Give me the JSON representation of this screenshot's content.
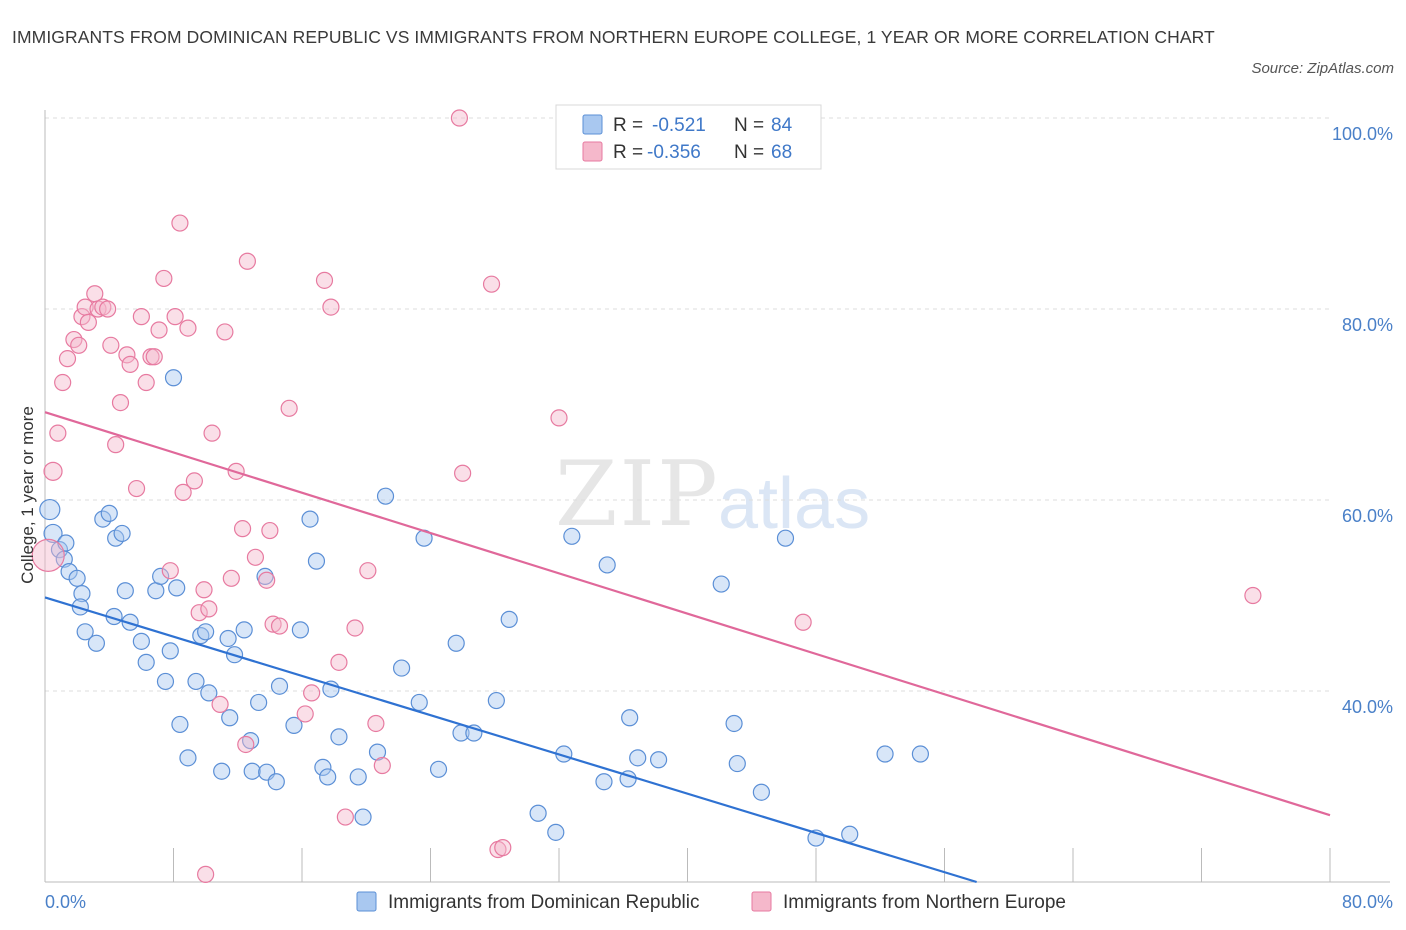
{
  "title": "IMMIGRANTS FROM DOMINICAN REPUBLIC VS IMMIGRANTS FROM NORTHERN EUROPE COLLEGE, 1 YEAR OR MORE CORRELATION CHART",
  "source": "Source: ZipAtlas.com",
  "watermark": {
    "zip": "ZIP",
    "atlas": "atlas"
  },
  "colors": {
    "blue_fill": "#a9c8f0",
    "blue_stroke": "#5b8fd6",
    "blue_line": "#2f72d2",
    "pink_fill": "#f5b8cb",
    "pink_stroke": "#e77aa0",
    "pink_line": "#e0689a",
    "tick": "#4a80c8",
    "grid": "#dddddd"
  },
  "legend": {
    "rows": [
      {
        "r_label": "R =",
        "r_value": "-0.521",
        "n_label": "N =",
        "n_value": "84"
      },
      {
        "r_label": "R =",
        "r_value": "-0.356",
        "n_label": "N =",
        "n_value": "68"
      }
    ]
  },
  "chart_data": {
    "type": "scatter",
    "title": "IMMIGRANTS FROM DOMINICAN REPUBLIC VS IMMIGRANTS FROM NORTHERN EUROPE COLLEGE, 1 YEAR OR MORE CORRELATION CHART",
    "xlabel": "",
    "ylabel": "College, 1 year or more",
    "xlim": [
      0,
      80
    ],
    "ylim": [
      20,
      100
    ],
    "x_tick_labels": [
      "0.0%",
      "80.0%"
    ],
    "y_ticks": [
      40,
      60,
      80,
      100
    ],
    "y_tick_labels": [
      "40.0%",
      "60.0%",
      "80.0%",
      "100.0%"
    ],
    "grid": true,
    "legend_position": "top-center",
    "series": [
      {
        "name": "Immigrants from Dominican Republic",
        "color": "#5b8fd6",
        "trend": {
          "x": [
            0,
            58
          ],
          "y": [
            49.8,
            20.0
          ]
        },
        "points": [
          [
            0.3,
            59.0
          ],
          [
            0.5,
            56.5
          ],
          [
            0.9,
            54.8
          ],
          [
            1.2,
            53.8
          ],
          [
            1.5,
            52.5
          ],
          [
            1.3,
            55.5
          ],
          [
            2.0,
            51.8
          ],
          [
            2.3,
            50.2
          ],
          [
            2.2,
            48.8
          ],
          [
            2.5,
            46.2
          ],
          [
            3.2,
            45.0
          ],
          [
            3.6,
            58.0
          ],
          [
            4.0,
            58.6
          ],
          [
            4.3,
            47.8
          ],
          [
            4.4,
            56.0
          ],
          [
            4.8,
            56.5
          ],
          [
            5.0,
            50.5
          ],
          [
            5.3,
            47.2
          ],
          [
            6.0,
            45.2
          ],
          [
            6.3,
            43.0
          ],
          [
            6.9,
            50.5
          ],
          [
            7.2,
            52.0
          ],
          [
            7.5,
            41.0
          ],
          [
            7.8,
            44.2
          ],
          [
            8.2,
            50.8
          ],
          [
            8.4,
            36.5
          ],
          [
            8.9,
            33.0
          ],
          [
            8.0,
            72.8
          ],
          [
            9.4,
            41.0
          ],
          [
            9.7,
            45.8
          ],
          [
            10.2,
            39.8
          ],
          [
            10.0,
            46.2
          ],
          [
            11.0,
            31.6
          ],
          [
            11.4,
            45.5
          ],
          [
            11.8,
            43.8
          ],
          [
            12.4,
            46.4
          ],
          [
            11.5,
            37.2
          ],
          [
            12.8,
            34.8
          ],
          [
            13.3,
            38.8
          ],
          [
            12.9,
            31.6
          ],
          [
            13.7,
            52.0
          ],
          [
            13.8,
            31.5
          ],
          [
            14.6,
            40.5
          ],
          [
            14.4,
            30.5
          ],
          [
            15.5,
            36.4
          ],
          [
            15.9,
            46.4
          ],
          [
            16.5,
            58.0
          ],
          [
            16.9,
            53.6
          ],
          [
            17.3,
            32.0
          ],
          [
            17.8,
            40.2
          ],
          [
            18.3,
            35.2
          ],
          [
            17.6,
            31.0
          ],
          [
            19.8,
            26.8
          ],
          [
            19.5,
            31.0
          ],
          [
            20.7,
            33.6
          ],
          [
            21.2,
            60.4
          ],
          [
            22.2,
            42.4
          ],
          [
            23.3,
            38.8
          ],
          [
            23.6,
            56.0
          ],
          [
            24.5,
            31.8
          ],
          [
            25.6,
            45.0
          ],
          [
            25.9,
            35.6
          ],
          [
            26.7,
            35.6
          ],
          [
            28.1,
            39.0
          ],
          [
            30.7,
            27.2
          ],
          [
            31.8,
            25.2
          ],
          [
            32.3,
            33.4
          ],
          [
            32.8,
            56.2
          ],
          [
            34.8,
            30.5
          ],
          [
            35.0,
            53.2
          ],
          [
            36.3,
            30.8
          ],
          [
            36.4,
            37.2
          ],
          [
            36.9,
            33.0
          ],
          [
            38.2,
            32.8
          ],
          [
            42.1,
            51.2
          ],
          [
            42.9,
            36.6
          ],
          [
            43.1,
            32.4
          ],
          [
            44.6,
            29.4
          ],
          [
            46.1,
            56.0
          ],
          [
            48.0,
            24.6
          ],
          [
            50.1,
            25.0
          ],
          [
            52.3,
            33.4
          ],
          [
            28.9,
            47.5
          ],
          [
            54.5,
            33.4
          ]
        ],
        "point_size": [
          16,
          14,
          12,
          12,
          12,
          12,
          12,
          12,
          12,
          12,
          12,
          12,
          12,
          12,
          12,
          12,
          12,
          12,
          12,
          12,
          12,
          12,
          12,
          12,
          12,
          12,
          12,
          12,
          12,
          12,
          12,
          12,
          12,
          12,
          12,
          12,
          12,
          12,
          12,
          12,
          12,
          12,
          12,
          12,
          12,
          12,
          12,
          12,
          12,
          12,
          12,
          12,
          12,
          12,
          12,
          12,
          12,
          12,
          12,
          12,
          12,
          12,
          12,
          12,
          12,
          12,
          12,
          12,
          12,
          12,
          12,
          12,
          12,
          12,
          12,
          12,
          12,
          12,
          12,
          12,
          12,
          12,
          12,
          12
        ]
      },
      {
        "name": "Immigrants from Northern Europe",
        "color": "#e77aa0",
        "trend": {
          "x": [
            0,
            80
          ],
          "y": [
            69.2,
            27.0
          ]
        },
        "points": [
          [
            0.2,
            54.2
          ],
          [
            0.5,
            63.0
          ],
          [
            0.8,
            67.0
          ],
          [
            1.1,
            72.3
          ],
          [
            1.4,
            74.8
          ],
          [
            1.8,
            76.8
          ],
          [
            2.1,
            76.2
          ],
          [
            2.3,
            79.2
          ],
          [
            2.5,
            80.2
          ],
          [
            2.7,
            78.6
          ],
          [
            3.1,
            81.6
          ],
          [
            3.3,
            80.0
          ],
          [
            3.6,
            80.2
          ],
          [
            3.9,
            80.0
          ],
          [
            4.1,
            76.2
          ],
          [
            4.4,
            65.8
          ],
          [
            4.7,
            70.2
          ],
          [
            5.1,
            75.2
          ],
          [
            5.3,
            74.2
          ],
          [
            5.7,
            61.2
          ],
          [
            6.0,
            79.2
          ],
          [
            6.3,
            72.3
          ],
          [
            6.6,
            75.0
          ],
          [
            6.8,
            75.0
          ],
          [
            7.1,
            77.8
          ],
          [
            7.4,
            83.2
          ],
          [
            7.8,
            52.6
          ],
          [
            8.1,
            79.2
          ],
          [
            8.4,
            89.0
          ],
          [
            8.6,
            60.8
          ],
          [
            8.9,
            78.0
          ],
          [
            9.3,
            62.0
          ],
          [
            9.6,
            48.2
          ],
          [
            9.9,
            50.6
          ],
          [
            10.2,
            48.6
          ],
          [
            10.4,
            67.0
          ],
          [
            10.9,
            38.6
          ],
          [
            11.2,
            77.6
          ],
          [
            11.6,
            51.8
          ],
          [
            11.9,
            63.0
          ],
          [
            12.3,
            57.0
          ],
          [
            12.5,
            34.4
          ],
          [
            12.6,
            85.0
          ],
          [
            13.1,
            54.0
          ],
          [
            13.8,
            51.6
          ],
          [
            14.2,
            47.0
          ],
          [
            14.0,
            56.8
          ],
          [
            14.6,
            46.8
          ],
          [
            15.2,
            69.6
          ],
          [
            16.2,
            37.6
          ],
          [
            16.6,
            39.8
          ],
          [
            17.4,
            83.0
          ],
          [
            17.8,
            80.2
          ],
          [
            18.3,
            43.0
          ],
          [
            18.7,
            26.8
          ],
          [
            19.3,
            46.6
          ],
          [
            20.1,
            52.6
          ],
          [
            20.6,
            36.6
          ],
          [
            21.0,
            32.2
          ],
          [
            25.8,
            100.0
          ],
          [
            26.0,
            62.8
          ],
          [
            27.8,
            82.6
          ],
          [
            28.2,
            23.4
          ],
          [
            28.5,
            23.6
          ],
          [
            32.0,
            68.6
          ],
          [
            47.2,
            47.2
          ],
          [
            75.2,
            50.0
          ],
          [
            10.0,
            20.8
          ]
        ],
        "point_size": [
          28,
          14,
          12,
          12,
          12,
          12,
          12,
          12,
          12,
          12,
          12,
          12,
          12,
          12,
          12,
          12,
          12,
          12,
          12,
          12,
          12,
          12,
          12,
          12,
          12,
          12,
          12,
          12,
          12,
          12,
          12,
          12,
          12,
          12,
          12,
          12,
          12,
          12,
          12,
          12,
          12,
          12,
          12,
          12,
          12,
          12,
          12,
          12,
          12,
          12,
          12,
          12,
          12,
          12,
          12,
          12,
          12,
          12,
          12,
          12,
          12,
          12,
          12,
          12,
          12,
          12,
          12,
          12
        ]
      }
    ]
  }
}
